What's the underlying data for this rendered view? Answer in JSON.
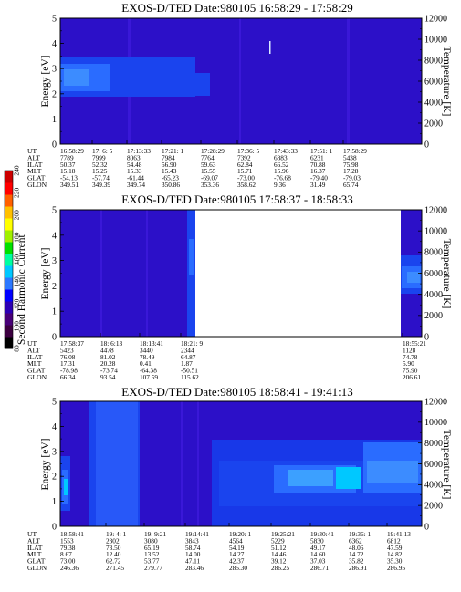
{
  "colorbar": {
    "label": "Second Harmonic Current",
    "ticks": [
      80,
      100,
      120,
      140,
      160,
      180,
      200,
      220,
      240
    ],
    "colors": [
      "#000000",
      "#3c0040",
      "#480078",
      "#2c00b4",
      "#0000ff",
      "#2c78ff",
      "#00c8ff",
      "#00ffa0",
      "#00e000",
      "#a0f000",
      "#ffff00",
      "#ffc000",
      "#ff6000",
      "#ff0000",
      "#cc0000"
    ]
  },
  "epheme_labels": [
    "UT",
    "ALT",
    "ILAT",
    "MLT",
    "GLAT",
    "GLON"
  ],
  "chart_data": [
    {
      "type": "heatmap",
      "title": "EXOS-D/TED   Date:980105   16:58:29 - 17:58:29",
      "ylabel": "Energy [eV]",
      "y2label": "Temperature [K]",
      "ylim": [
        0,
        5
      ],
      "y2lim": [
        0,
        12000
      ],
      "yticks": [
        "0",
        "1",
        "2",
        "3",
        "4",
        "5"
      ],
      "y2ticks": [
        "0",
        "2000",
        "4000",
        "6000",
        "8000",
        "10000",
        "12000"
      ],
      "ephemeris": [
        {
          "UT": "16:58:29",
          "ALT": "7789",
          "ILAT": "50.37",
          "MLT": "15.18",
          "GLAT": "-54.13",
          "GLON": "349.51"
        },
        {
          "UT": "17: 6: 5",
          "ALT": "7999",
          "ILAT": "52.32",
          "MLT": "15.25",
          "GLAT": "-57.74",
          "GLON": "349.39"
        },
        {
          "UT": "17:13:33",
          "ALT": "8063",
          "ILAT": "54.48",
          "MLT": "15.33",
          "GLAT": "-61.44",
          "GLON": "349.74"
        },
        {
          "UT": "17:21: 1",
          "ALT": "7984",
          "ILAT": "56.90",
          "MLT": "15.43",
          "GLAT": "-65.23",
          "GLON": "350.86"
        },
        {
          "UT": "17:28:29",
          "ALT": "7764",
          "ILAT": "59.63",
          "MLT": "15.55",
          "GLAT": "-69.07",
          "GLON": "353.36"
        },
        {
          "UT": "17:36: 5",
          "ALT": "7392",
          "ILAT": "62.84",
          "MLT": "15.71",
          "GLAT": "-73.00",
          "GLON": "358.62"
        },
        {
          "UT": "17:43:33",
          "ALT": "6883",
          "ILAT": "66.52",
          "MLT": "15.96",
          "GLAT": "-76.68",
          "GLON": "9.36"
        },
        {
          "UT": "17:51: 1",
          "ALT": "6231",
          "ILAT": "70.88",
          "MLT": "16.37",
          "GLAT": "-79.40",
          "GLON": "31.49"
        },
        {
          "UT": "17:58:29",
          "ALT": "5438",
          "ILAT": "75.98",
          "MLT": "17.28",
          "GLAT": "-79.03",
          "GLON": "65.74"
        }
      ]
    },
    {
      "type": "heatmap",
      "title": "EXOS-D/TED   Date:980105   17:58:37 - 18:58:33",
      "ylabel": "Energy [eV]",
      "y2label": "Temperature [K]",
      "ylim": [
        0,
        5
      ],
      "y2lim": [
        0,
        12000
      ],
      "yticks": [
        "0",
        "1",
        "2",
        "3",
        "4",
        "5"
      ],
      "y2ticks": [
        "0",
        "2000",
        "4000",
        "6000",
        "8000",
        "10000",
        "12000"
      ],
      "ephemeris": [
        {
          "UT": "17:58:37",
          "ALT": "5423",
          "ILAT": "76.08",
          "MLT": "17.31",
          "GLAT": "-78.98",
          "GLON": "66.34"
        },
        {
          "UT": "18: 6:13",
          "ALT": "4478",
          "ILAT": "81.02",
          "MLT": "20.28",
          "GLAT": "-73.74",
          "GLON": "93.54"
        },
        {
          "UT": "18:13:41",
          "ALT": "3440",
          "ILAT": "78.49",
          "MLT": "0.41",
          "GLAT": "-64.38",
          "GLON": "107.59"
        },
        {
          "UT": "18:21: 9",
          "ALT": "2344",
          "ILAT": "64.87",
          "MLT": "1.87",
          "GLAT": "-50.51",
          "GLON": "115.62"
        },
        {
          "UT": "18:55:21",
          "ALT": "1128",
          "ILAT": "74.78",
          "MLT": "5.90",
          "GLAT": "75.90",
          "GLON": "206.61"
        }
      ]
    },
    {
      "type": "heatmap",
      "title": "EXOS-D/TED   Date:980105   18:58:41 - 19:41:13",
      "ylabel": "Energy [eV]",
      "y2label": "Temperature [K]",
      "ylim": [
        0,
        5
      ],
      "y2lim": [
        0,
        12000
      ],
      "yticks": [
        "0",
        "1",
        "2",
        "3",
        "4",
        "5"
      ],
      "y2ticks": [
        "0",
        "2000",
        "4000",
        "6000",
        "8000",
        "10000",
        "12000"
      ],
      "ephemeris": [
        {
          "UT": "18:58:41",
          "ALT": "1553",
          "ILAT": "79.38",
          "MLT": "8.67",
          "GLAT": "73.00",
          "GLON": "246.36"
        },
        {
          "UT": "19: 4: 1",
          "ALT": "2302",
          "ILAT": "73.50",
          "MLT": "12.40",
          "GLAT": "62.72",
          "GLON": "271.45"
        },
        {
          "UT": "19: 9:21",
          "ALT": "3080",
          "ILAT": "65.19",
          "MLT": "13.52",
          "GLAT": "53.77",
          "GLON": "279.77"
        },
        {
          "UT": "19:14:41",
          "ALT": "3843",
          "ILAT": "58.74",
          "MLT": "14.00",
          "GLAT": "47.11",
          "GLON": "283.46"
        },
        {
          "UT": "19:20: 1",
          "ALT": "4564",
          "ILAT": "54.19",
          "MLT": "14.27",
          "GLAT": "42.37",
          "GLON": "285.30"
        },
        {
          "UT": "19:25:21",
          "ALT": "5229",
          "ILAT": "51.12",
          "MLT": "14.46",
          "GLAT": "39.12",
          "GLON": "286.25"
        },
        {
          "UT": "19:30:41",
          "ALT": "5830",
          "ILAT": "49.17",
          "MLT": "14.60",
          "GLAT": "37.03",
          "GLON": "286.71"
        },
        {
          "UT": "19:36: 1",
          "ALT": "6362",
          "ILAT": "48.06",
          "MLT": "14.72",
          "GLAT": "35.82",
          "GLON": "286.91"
        },
        {
          "UT": "19:41:13",
          "ALT": "6812",
          "ILAT": "47.59",
          "MLT": "14.82",
          "GLAT": "35.30",
          "GLON": "286.95"
        }
      ]
    }
  ]
}
